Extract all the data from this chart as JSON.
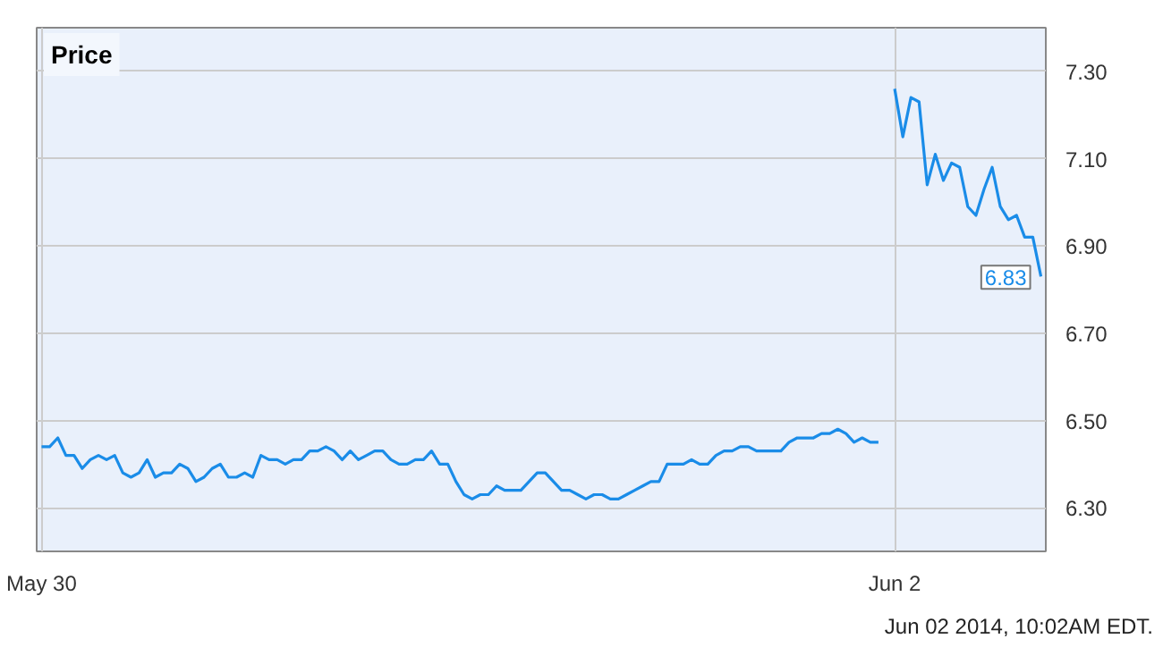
{
  "chart_data": {
    "type": "line",
    "title": "Price",
    "categories": [
      "May 30",
      null,
      null,
      null,
      null,
      null,
      null,
      null,
      null,
      null,
      null,
      null,
      null,
      null,
      null,
      null,
      null,
      null,
      null,
      null,
      null,
      null,
      null,
      null,
      null,
      null,
      null,
      null,
      null,
      null,
      null,
      null,
      null,
      null,
      null,
      null,
      null,
      null,
      null,
      null,
      null,
      null,
      null,
      null,
      null,
      null,
      null,
      null,
      null,
      null,
      null,
      null,
      null,
      null,
      null,
      null,
      null,
      null,
      null,
      null,
      null,
      null,
      null,
      null,
      null,
      null,
      null,
      null,
      null,
      null,
      null,
      null,
      null,
      null,
      null,
      null,
      null,
      null,
      null,
      null,
      null,
      null,
      null,
      null,
      null,
      null,
      null,
      null,
      null,
      null,
      null,
      null,
      null,
      null,
      null,
      null,
      null,
      null,
      null,
      null,
      null,
      null,
      null,
      null,
      null,
      "Jun 2",
      null,
      null,
      null,
      null,
      null,
      null,
      null,
      null,
      null,
      null,
      null,
      null,
      null,
      null,
      null,
      null,
      null,
      null
    ],
    "series": [
      {
        "color": "#1a8ce8",
        "values": [
          6.44,
          6.44,
          6.46,
          6.42,
          6.42,
          6.39,
          6.41,
          6.42,
          6.41,
          6.42,
          6.38,
          6.37,
          6.38,
          6.41,
          6.37,
          6.38,
          6.38,
          6.4,
          6.39,
          6.36,
          6.37,
          6.39,
          6.4,
          6.37,
          6.37,
          6.38,
          6.37,
          6.42,
          6.41,
          6.41,
          6.4,
          6.41,
          6.41,
          6.43,
          6.43,
          6.44,
          6.43,
          6.41,
          6.43,
          6.41,
          6.42,
          6.43,
          6.43,
          6.41,
          6.4,
          6.4,
          6.41,
          6.41,
          6.43,
          6.4,
          6.4,
          6.36,
          6.33,
          6.32,
          6.33,
          6.33,
          6.35,
          6.34,
          6.34,
          6.34,
          6.36,
          6.38,
          6.38,
          6.36,
          6.34,
          6.34,
          6.33,
          6.32,
          6.33,
          6.33,
          6.32,
          6.32,
          6.33,
          6.34,
          6.35,
          6.36,
          6.36,
          6.4,
          6.4,
          6.4,
          6.41,
          6.4,
          6.4,
          6.42,
          6.43,
          6.43,
          6.44,
          6.44,
          6.43,
          6.43,
          6.43,
          6.43,
          6.45,
          6.46,
          6.46,
          6.46,
          6.47,
          6.47,
          6.48,
          6.47,
          6.45,
          6.46,
          6.45,
          6.45,
          null,
          7.26,
          7.15,
          7.24,
          7.23,
          7.04,
          7.11,
          7.05,
          7.09,
          7.08,
          6.99,
          6.97,
          7.03,
          7.08,
          6.99,
          6.96,
          6.97,
          6.92,
          6.92,
          6.83
        ],
        "value_labels": [
          null,
          null,
          null,
          null,
          null,
          null,
          null,
          null,
          null,
          null,
          null,
          null,
          null,
          null,
          null,
          null,
          null,
          null,
          null,
          null,
          null,
          null,
          null,
          null,
          null,
          null,
          null,
          null,
          null,
          null,
          null,
          null,
          null,
          null,
          null,
          null,
          null,
          null,
          null,
          null,
          null,
          null,
          null,
          null,
          null,
          null,
          null,
          null,
          null,
          null,
          null,
          null,
          null,
          null,
          null,
          null,
          null,
          null,
          null,
          null,
          null,
          null,
          null,
          null,
          null,
          null,
          null,
          null,
          null,
          null,
          null,
          null,
          null,
          null,
          null,
          null,
          null,
          null,
          null,
          null,
          null,
          null,
          null,
          null,
          null,
          null,
          null,
          null,
          null,
          null,
          null,
          null,
          null,
          null,
          null,
          null,
          null,
          null,
          null,
          null,
          null,
          null,
          null,
          null,
          null,
          null,
          null,
          null,
          null,
          null,
          null,
          null,
          null,
          null,
          null,
          null,
          null,
          null,
          null,
          null,
          null,
          null,
          null,
          "6.83"
        ]
      }
    ],
    "ylim": [
      6.2,
      7.4
    ],
    "yticks": [
      {
        "value": 6.3,
        "label": "6.30"
      },
      {
        "value": 6.5,
        "label": "6.50"
      },
      {
        "value": 6.7,
        "label": "6.70"
      },
      {
        "value": 6.9,
        "label": "6.90"
      },
      {
        "value": 7.1,
        "label": "7.10"
      },
      {
        "value": 7.3,
        "label": "7.30"
      }
    ],
    "grid": true,
    "annotations": [
      "Jun 02 2014, 10:02AM EDT."
    ]
  }
}
